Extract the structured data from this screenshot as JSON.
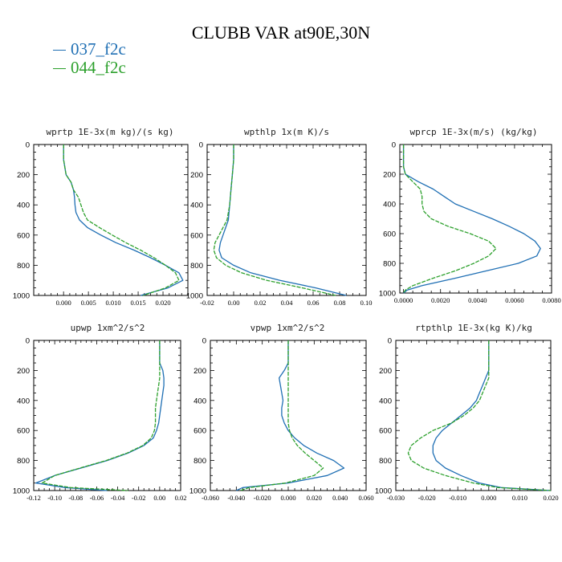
{
  "title": "CLUBB VAR at90E,30N",
  "legend": [
    {
      "label": "037_f2c",
      "color": "#1f6fb4"
    },
    {
      "label": "044_f2c",
      "color": "#2ca02c"
    }
  ],
  "chart_data": [
    {
      "type": "line",
      "title": "wprtp  1E-3x(m kg)/(s kg)",
      "xlim": [
        -0.006,
        0.025
      ],
      "ylim": [
        1000,
        0
      ],
      "xticks": [
        0.0,
        0.005,
        0.01,
        0.015,
        0.02
      ],
      "xtick_labels": [
        "0.000",
        "0.005",
        "0.010",
        "0.015",
        "0.020"
      ],
      "yticks": [
        0,
        200,
        400,
        600,
        800,
        1000
      ],
      "series": [
        {
          "name": "037_f2c",
          "y": [
            0,
            100,
            200,
            250,
            300,
            350,
            400,
            450,
            500,
            550,
            600,
            650,
            700,
            750,
            800,
            850,
            900,
            950,
            1000
          ],
          "x": [
            0.0,
            0.0,
            0.0005,
            0.0015,
            0.002,
            0.0022,
            0.0023,
            0.0025,
            0.0032,
            0.0048,
            0.0075,
            0.0105,
            0.0142,
            0.0175,
            0.0205,
            0.0232,
            0.024,
            0.021,
            0.0155
          ]
        },
        {
          "name": "044_f2c",
          "y": [
            0,
            100,
            200,
            250,
            300,
            350,
            400,
            450,
            500,
            550,
            600,
            650,
            700,
            750,
            800,
            850,
            900,
            950,
            1000
          ],
          "x": [
            0.0,
            0.0,
            0.0005,
            0.0015,
            0.002,
            0.003,
            0.0035,
            0.004,
            0.0048,
            0.0072,
            0.0098,
            0.0125,
            0.0155,
            0.0182,
            0.0205,
            0.0225,
            0.0232,
            0.0205,
            0.016
          ]
        }
      ]
    },
    {
      "type": "line",
      "title": "wpthlp  1x(m K)/s",
      "xlim": [
        -0.02,
        0.1
      ],
      "ylim": [
        1000,
        0
      ],
      "xticks": [
        -0.02,
        0.0,
        0.02,
        0.04,
        0.06,
        0.08,
        0.1
      ],
      "xtick_labels": [
        "-0.02",
        "0.00",
        "0.02",
        "0.04",
        "0.06",
        "0.08",
        "0.10"
      ],
      "yticks": [
        0,
        200,
        400,
        600,
        800,
        1000
      ],
      "series": [
        {
          "name": "037_f2c",
          "y": [
            0,
            100,
            200,
            300,
            400,
            500,
            550,
            600,
            650,
            700,
            750,
            800,
            850,
            900,
            950,
            1000
          ],
          "x": [
            0.0,
            0.0,
            -0.001,
            -0.002,
            -0.003,
            -0.004,
            -0.006,
            -0.008,
            -0.01,
            -0.011,
            -0.009,
            0.0,
            0.013,
            0.035,
            0.062,
            0.085
          ]
        },
        {
          "name": "044_f2c",
          "y": [
            0,
            100,
            200,
            300,
            400,
            500,
            550,
            600,
            650,
            700,
            750,
            800,
            850,
            900,
            950,
            1000
          ],
          "x": [
            0.0,
            0.0,
            -0.001,
            -0.002,
            -0.003,
            -0.005,
            -0.008,
            -0.011,
            -0.014,
            -0.015,
            -0.013,
            -0.006,
            0.006,
            0.025,
            0.052,
            0.077
          ]
        }
      ]
    },
    {
      "type": "line",
      "title": "wprcp  1E-3x(m/s) (kg/kg)",
      "xlim": [
        -0.0002,
        0.008
      ],
      "ylim": [
        1000,
        0
      ],
      "xticks": [
        0.0,
        0.002,
        0.004,
        0.006,
        0.008
      ],
      "xtick_labels": [
        "0.0000",
        "0.0020",
        "0.0040",
        "0.0060",
        "0.0080"
      ],
      "yticks": [
        0,
        200,
        400,
        600,
        800,
        1000
      ],
      "series": [
        {
          "name": "037_f2c",
          "y": [
            0,
            100,
            150,
            200,
            250,
            300,
            350,
            400,
            450,
            500,
            550,
            600,
            650,
            700,
            750,
            800,
            850,
            900,
            950,
            980,
            1000
          ],
          "x": [
            0.0,
            0.0,
            0.0,
            0.0001,
            0.0008,
            0.0016,
            0.0022,
            0.0028,
            0.0038,
            0.0048,
            0.0057,
            0.0065,
            0.0071,
            0.0074,
            0.0072,
            0.0062,
            0.0045,
            0.0028,
            0.001,
            0.0002,
            0.0
          ]
        },
        {
          "name": "044_f2c",
          "y": [
            0,
            100,
            150,
            200,
            250,
            300,
            350,
            400,
            450,
            500,
            550,
            600,
            650,
            700,
            750,
            800,
            850,
            900,
            950,
            980,
            1000
          ],
          "x": [
            0.0,
            0.0,
            0.0,
            0.0001,
            0.0005,
            0.0009,
            0.001,
            0.001,
            0.0011,
            0.0015,
            0.0024,
            0.0036,
            0.0046,
            0.005,
            0.0046,
            0.0038,
            0.0028,
            0.0016,
            0.0005,
            0.0001,
            0.0
          ]
        }
      ]
    },
    {
      "type": "line",
      "title": "upwp  1xm^2/s^2",
      "xlim": [
        -0.12,
        0.02
      ],
      "ylim": [
        1000,
        0
      ],
      "xticks": [
        -0.12,
        -0.1,
        -0.08,
        -0.06,
        -0.04,
        -0.02,
        0.0,
        0.02
      ],
      "xtick_labels": [
        "-0.12",
        "-0.10",
        "-0.08",
        "-0.06",
        "-0.04",
        "-0.02",
        "0.00",
        "0.02"
      ],
      "yticks": [
        0,
        200,
        400,
        600,
        800,
        1000
      ],
      "series": [
        {
          "name": "037_f2c",
          "y": [
            0,
            100,
            150,
            200,
            250,
            300,
            350,
            400,
            450,
            500,
            550,
            600,
            650,
            700,
            750,
            800,
            850,
            900,
            950,
            980,
            1000
          ],
          "x": [
            0.0,
            0.0,
            0.0,
            0.003,
            0.004,
            0.004,
            0.003,
            0.002,
            0.001,
            0.0,
            -0.001,
            -0.003,
            -0.006,
            -0.015,
            -0.03,
            -0.05,
            -0.075,
            -0.1,
            -0.118,
            -0.09,
            -0.05
          ]
        },
        {
          "name": "044_f2c",
          "y": [
            0,
            100,
            150,
            200,
            250,
            300,
            350,
            400,
            450,
            500,
            550,
            600,
            650,
            700,
            750,
            800,
            850,
            900,
            950,
            980,
            1000
          ],
          "x": [
            0.0,
            0.0,
            0.0,
            0.0,
            0.0,
            -0.001,
            -0.002,
            -0.003,
            -0.004,
            -0.004,
            -0.004,
            -0.005,
            -0.008,
            -0.016,
            -0.031,
            -0.051,
            -0.076,
            -0.1,
            -0.112,
            -0.085,
            -0.03
          ]
        }
      ]
    },
    {
      "type": "line",
      "title": "vpwp  1xm^2/s^2",
      "xlim": [
        -0.06,
        0.06
      ],
      "ylim": [
        1000,
        0
      ],
      "xticks": [
        -0.06,
        -0.04,
        -0.02,
        0.0,
        0.02,
        0.04,
        0.06
      ],
      "xtick_labels": [
        "-0.060",
        "-0.040",
        "-0.020",
        "0.000",
        "0.020",
        "0.040",
        "0.060"
      ],
      "yticks": [
        0,
        200,
        400,
        600,
        800,
        1000
      ],
      "series": [
        {
          "name": "037_f2c",
          "y": [
            0,
            100,
            150,
            200,
            250,
            300,
            350,
            400,
            450,
            500,
            550,
            600,
            650,
            700,
            750,
            800,
            850,
            900,
            950,
            980,
            1000
          ],
          "x": [
            0.0,
            0.0,
            0.0,
            -0.003,
            -0.007,
            -0.006,
            -0.005,
            -0.004,
            -0.005,
            -0.005,
            -0.003,
            0.0,
            0.005,
            0.012,
            0.022,
            0.035,
            0.043,
            0.03,
            0.0,
            -0.035,
            -0.04
          ]
        },
        {
          "name": "044_f2c",
          "y": [
            0,
            100,
            150,
            200,
            250,
            300,
            350,
            400,
            450,
            500,
            550,
            600,
            650,
            700,
            750,
            800,
            850,
            900,
            950,
            980,
            1000
          ],
          "x": [
            0.0,
            0.0,
            0.0,
            0.0,
            0.0,
            0.0,
            0.0,
            0.0,
            0.0,
            0.0,
            0.0,
            0.001,
            0.003,
            0.007,
            0.013,
            0.02,
            0.027,
            0.02,
            -0.002,
            -0.03,
            -0.037
          ]
        }
      ]
    },
    {
      "type": "line",
      "title": "rtpthlp  1E-3x(kg K)/kg",
      "xlim": [
        -0.03,
        0.02
      ],
      "ylim": [
        1000,
        0
      ],
      "xticks": [
        -0.03,
        -0.02,
        -0.01,
        0.0,
        0.01,
        0.02
      ],
      "xtick_labels": [
        "-0.030",
        "-0.020",
        "-0.010",
        "0.000",
        "0.010",
        "0.020"
      ],
      "yticks": [
        0,
        200,
        400,
        600,
        800,
        1000
      ],
      "series": [
        {
          "name": "037_f2c",
          "y": [
            0,
            100,
            200,
            250,
            300,
            350,
            400,
            450,
            500,
            550,
            600,
            650,
            700,
            750,
            800,
            850,
            900,
            950,
            980,
            1000
          ],
          "x": [
            0.0,
            0.0,
            0.0,
            -0.001,
            -0.002,
            -0.003,
            -0.004,
            -0.006,
            -0.009,
            -0.012,
            -0.015,
            -0.017,
            -0.018,
            -0.018,
            -0.017,
            -0.014,
            -0.009,
            -0.003,
            0.004,
            0.02
          ]
        },
        {
          "name": "044_f2c",
          "y": [
            0,
            100,
            200,
            250,
            300,
            350,
            400,
            450,
            500,
            550,
            600,
            650,
            700,
            750,
            800,
            850,
            900,
            950,
            980,
            1000
          ],
          "x": [
            0.0,
            0.0,
            0.0,
            0.0,
            -0.001,
            -0.002,
            -0.003,
            -0.005,
            -0.008,
            -0.012,
            -0.018,
            -0.022,
            -0.025,
            -0.026,
            -0.025,
            -0.021,
            -0.014,
            -0.005,
            0.003,
            0.02
          ]
        }
      ]
    }
  ]
}
